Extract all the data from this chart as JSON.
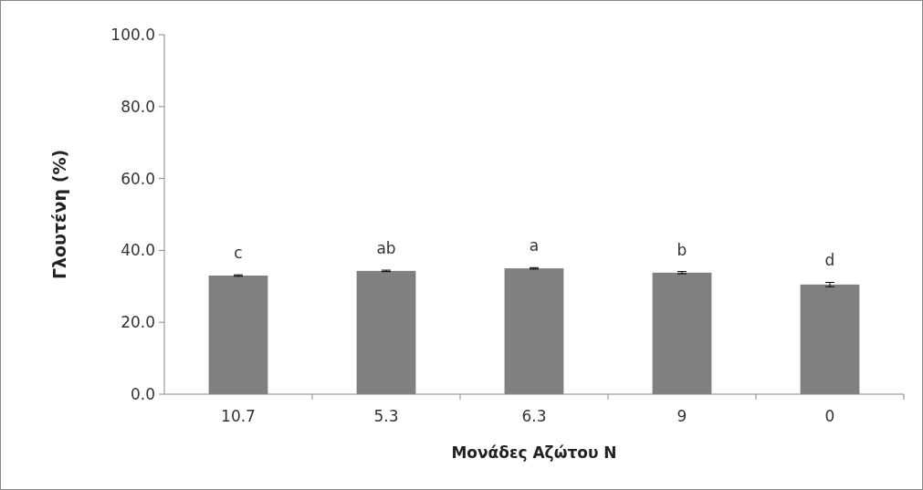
{
  "chart_data": {
    "type": "bar",
    "xlabel": "Μονάδες Αζώτου Ν",
    "ylabel": "Γλουτένη (%)",
    "categories": [
      "10.7",
      "5.3",
      "6.3",
      "9",
      "0"
    ],
    "values": [
      33.0,
      34.3,
      35.0,
      33.8,
      30.5
    ],
    "errors": [
      0.2,
      0.2,
      0.2,
      0.3,
      0.6
    ],
    "color": "#808080",
    "ylim": [
      0,
      100
    ],
    "yticks": [
      {
        "value": 0,
        "label": "0.0"
      },
      {
        "value": 20,
        "label": "20.0"
      },
      {
        "value": 40,
        "label": "40.0"
      },
      {
        "value": 60,
        "label": "60.0"
      },
      {
        "value": 80,
        "label": "80.0"
      },
      {
        "value": 100,
        "label": "100.0"
      }
    ],
    "grid": false,
    "annotations": [
      {
        "text": "c",
        "x": "10.7",
        "y": 33.0
      },
      {
        "text": "ab",
        "x": "5.3",
        "y": 34.3
      },
      {
        "text": "a",
        "x": "6.3",
        "y": 35.0
      },
      {
        "text": "b",
        "x": "9",
        "y": 33.8
      },
      {
        "text": "d",
        "x": "0",
        "y": 30.5
      }
    ]
  }
}
